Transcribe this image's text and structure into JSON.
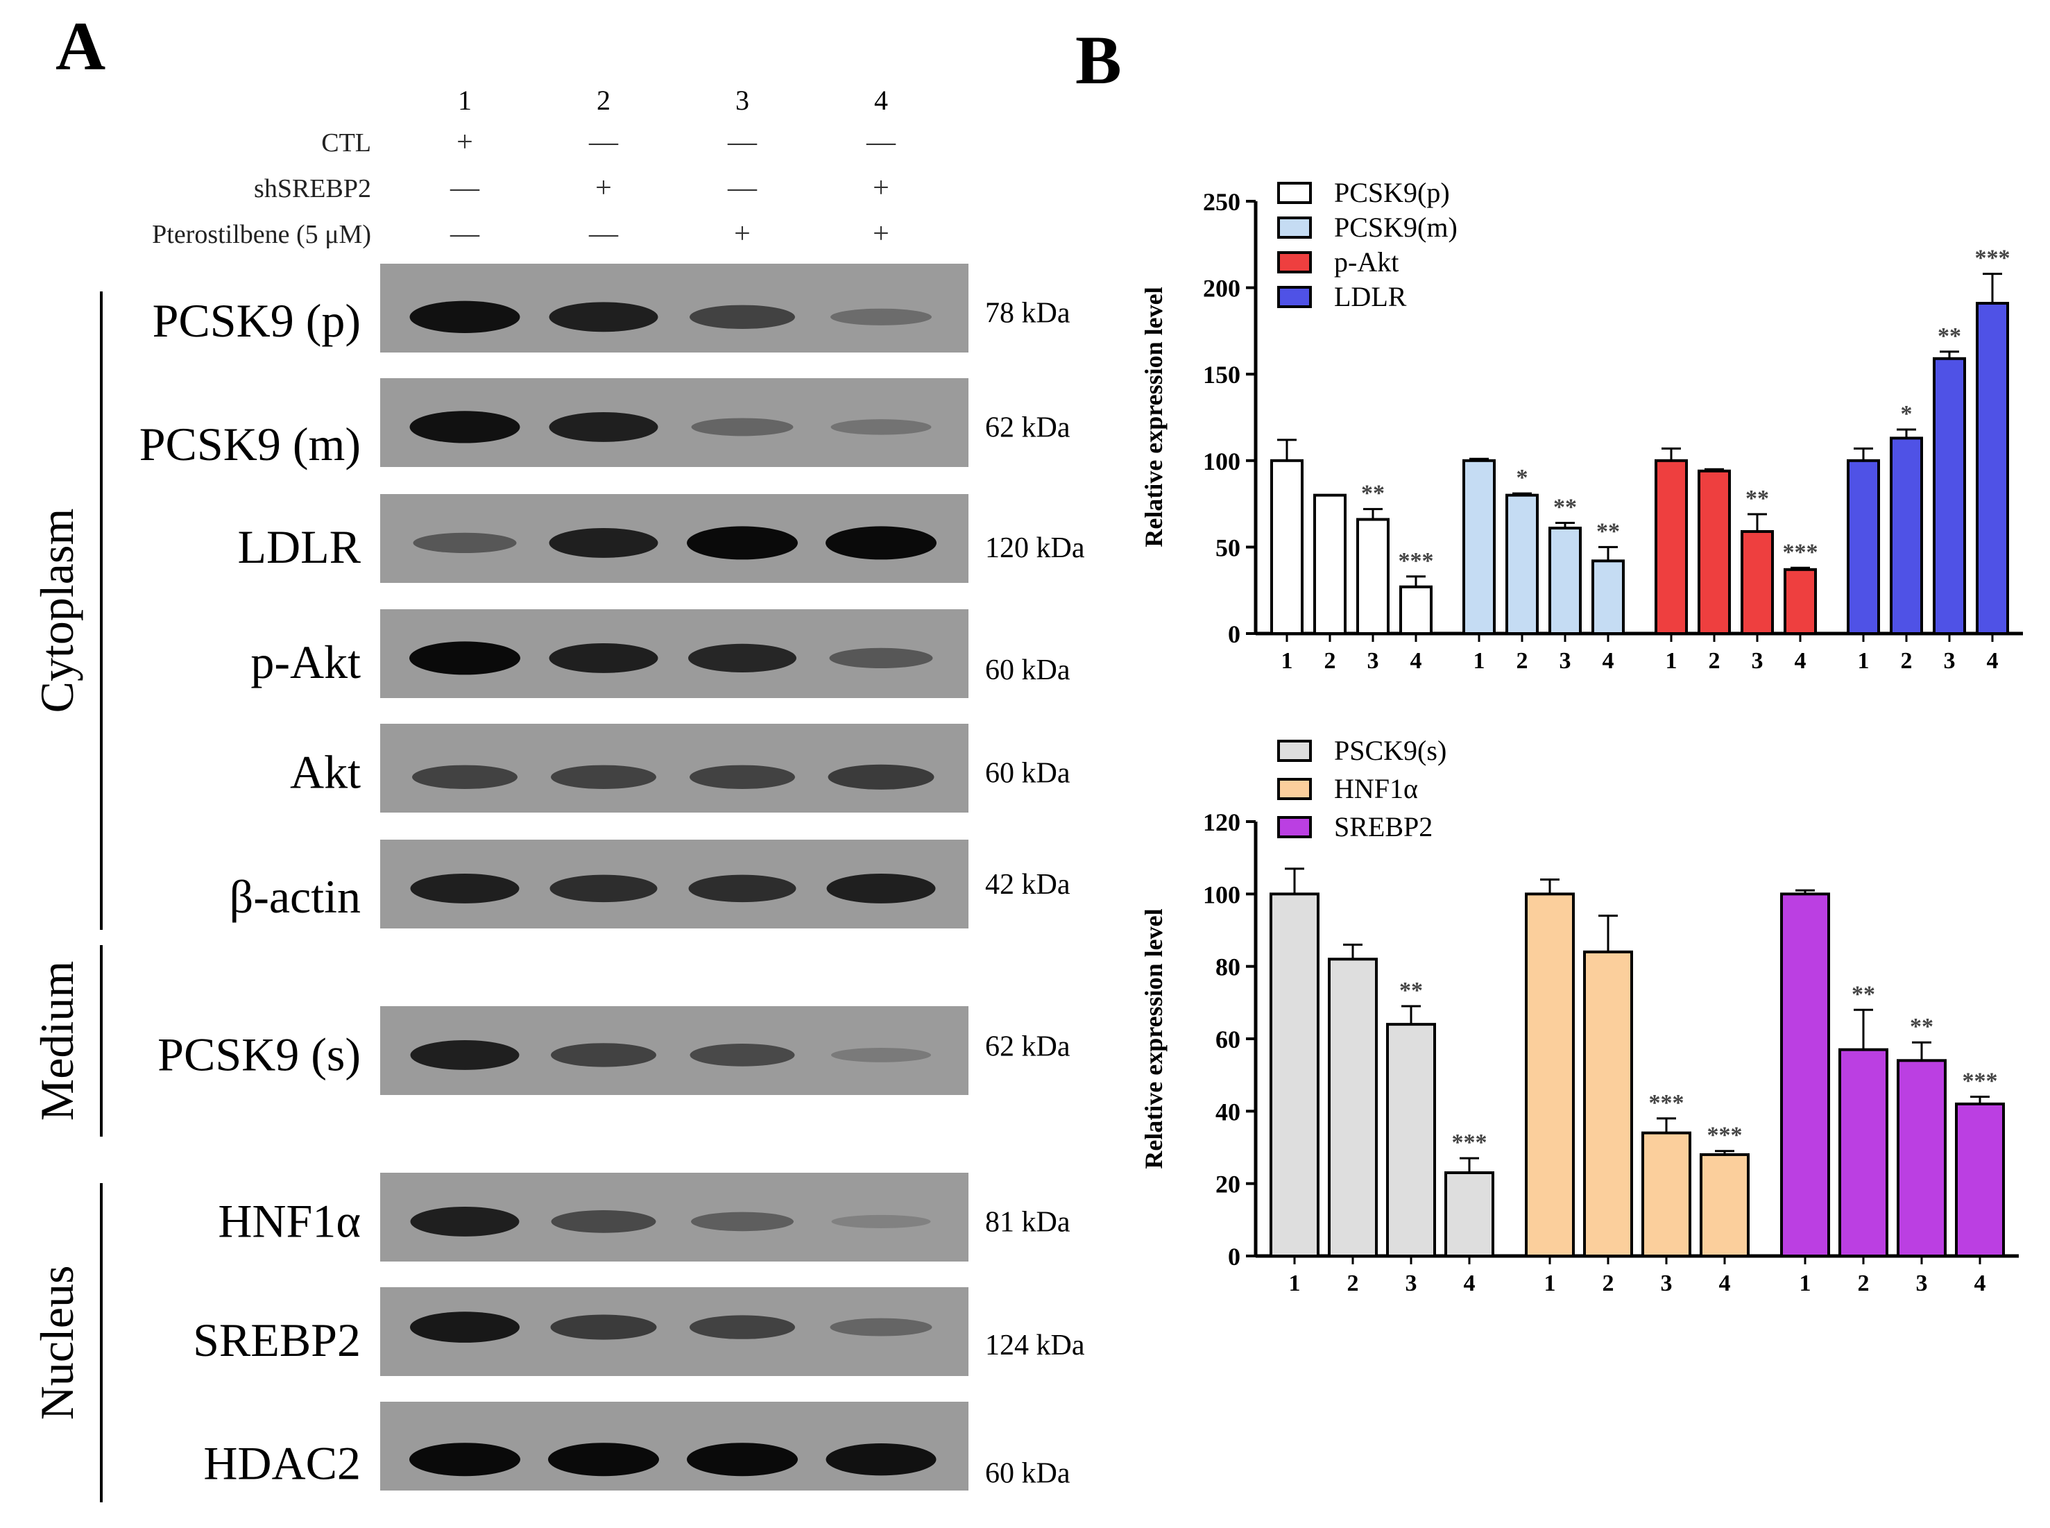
{
  "panel_a": {
    "label": "A",
    "lanes": [
      "1",
      "2",
      "3",
      "4"
    ],
    "conditions": [
      {
        "name": "CTL",
        "marks": [
          "+",
          "—",
          "—",
          "—"
        ]
      },
      {
        "name": "shSREBP2",
        "marks": [
          "—",
          "+",
          "—",
          "+"
        ]
      },
      {
        "name": "Pterostilbene (5 μM)",
        "marks": [
          "—",
          "—",
          "+",
          "+"
        ]
      }
    ],
    "groups": [
      {
        "label": "Cytoplasm",
        "blots": [
          {
            "name": "PCSK9 (p)",
            "kda": "78 kDa",
            "intensity": [
              0.95,
              0.85,
              0.6,
              0.3
            ]
          },
          {
            "name": "PCSK9 (m)",
            "kda": "62 kDa",
            "intensity": [
              0.95,
              0.85,
              0.35,
              0.25
            ]
          },
          {
            "name": "LDLR",
            "kda": "120 kDa",
            "intensity": [
              0.45,
              0.85,
              1.0,
              1.0
            ]
          },
          {
            "name": "p-Akt",
            "kda": "60 kDa",
            "intensity": [
              1.0,
              0.85,
              0.8,
              0.45
            ]
          },
          {
            "name": "Akt",
            "kda": "60 kDa",
            "intensity": [
              0.6,
              0.6,
              0.6,
              0.65
            ]
          },
          {
            "name": "β-actin",
            "kda": "42 kDa",
            "intensity": [
              0.85,
              0.75,
              0.75,
              0.85
            ]
          }
        ]
      },
      {
        "label": "Medium",
        "blots": [
          {
            "name": "PCSK9 (s)",
            "kda": "62 kDa",
            "intensity": [
              0.85,
              0.6,
              0.55,
              0.2
            ]
          }
        ]
      },
      {
        "label": "Nucleus",
        "blots": [
          {
            "name": "HNF1α",
            "kda": "81 kDa",
            "intensity": [
              0.85,
              0.55,
              0.4,
              0.15
            ]
          },
          {
            "name": "SREBP2",
            "kda": "124 kDa",
            "intensity": [
              0.9,
              0.65,
              0.6,
              0.35
            ]
          },
          {
            "name": "HDAC2",
            "kda": "60 kDa",
            "intensity": [
              1.0,
              1.0,
              1.0,
              0.95
            ]
          }
        ]
      }
    ]
  },
  "panel_b": {
    "label": "B"
  },
  "chart_data": [
    {
      "type": "bar",
      "title": "",
      "ylabel": "Relative expression level",
      "ylim": [
        0,
        250
      ],
      "yticks": [
        0,
        50,
        100,
        150,
        200,
        250
      ],
      "categories": [
        "1",
        "2",
        "3",
        "4"
      ],
      "legend_position": "top-left",
      "series": [
        {
          "name": "PCSK9(p)",
          "color": "#ffffff",
          "values": [
            100,
            80,
            66,
            27
          ],
          "errors": [
            12,
            0,
            6,
            6
          ],
          "sig": [
            "",
            "",
            "**",
            "***"
          ]
        },
        {
          "name": "PCSK9(m)",
          "color": "#c5dcf3",
          "values": [
            100,
            80,
            61,
            42
          ],
          "errors": [
            1,
            1,
            3,
            8
          ],
          "sig": [
            "",
            "*",
            "**",
            "**"
          ]
        },
        {
          "name": "p-Akt",
          "color": "#ee3f3f",
          "values": [
            100,
            94,
            59,
            37
          ],
          "errors": [
            7,
            1,
            10,
            1
          ],
          "sig": [
            "",
            "",
            "**",
            "***"
          ]
        },
        {
          "name": "LDLR",
          "color": "#4f52e6",
          "values": [
            100,
            113,
            159,
            191
          ],
          "errors": [
            7,
            5,
            4,
            17
          ],
          "sig": [
            "",
            "*",
            "**",
            "***"
          ]
        }
      ]
    },
    {
      "type": "bar",
      "title": "",
      "ylabel": "Relative expression level",
      "ylim": [
        0,
        120
      ],
      "yticks": [
        0,
        20,
        40,
        60,
        80,
        100,
        120
      ],
      "categories": [
        "1",
        "2",
        "3",
        "4"
      ],
      "legend_position": "top-left",
      "series": [
        {
          "name": "PSCK9(s)",
          "color": "#dedede",
          "values": [
            100,
            82,
            64,
            23
          ],
          "errors": [
            7,
            4,
            5,
            4
          ],
          "sig": [
            "",
            "",
            "**",
            "***"
          ]
        },
        {
          "name": "HNF1α",
          "color": "#fbcf9c",
          "values": [
            100,
            84,
            34,
            28
          ],
          "errors": [
            4,
            10,
            4,
            1
          ],
          "sig": [
            "",
            "",
            "***",
            "***"
          ]
        },
        {
          "name": "SREBP2",
          "color": "#bb3fe2",
          "values": [
            100,
            57,
            54,
            42
          ],
          "errors": [
            1,
            11,
            5,
            2
          ],
          "sig": [
            "",
            "**",
            "**",
            "***"
          ]
        }
      ]
    }
  ]
}
